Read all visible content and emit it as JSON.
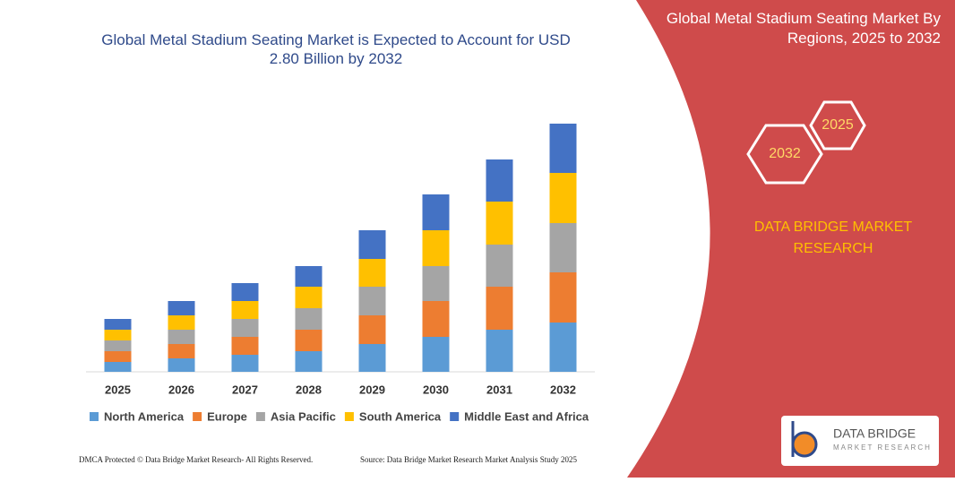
{
  "chart_data": {
    "type": "stacked_bar",
    "title": "Global Metal Stadium Seating Market is Expected to Account for USD 2.80 Billion by 2032",
    "categories": [
      "2025",
      "2026",
      "2027",
      "2028",
      "2029",
      "2030",
      "2031",
      "2032"
    ],
    "series": [
      {
        "name": "North America",
        "color": "#5b9bd5",
        "values": [
          11,
          15,
          19,
          23,
          31,
          39,
          47,
          55
        ]
      },
      {
        "name": "Europe",
        "color": "#ed7d31",
        "values": [
          12,
          16,
          20,
          24,
          32,
          40,
          48,
          56
        ]
      },
      {
        "name": "Asia Pacific",
        "color": "#a5a5a5",
        "values": [
          12,
          16,
          20,
          24,
          32,
          39,
          47,
          55
        ]
      },
      {
        "name": "South America",
        "color": "#ffc000",
        "values": [
          12,
          16,
          20,
          24,
          31,
          40,
          48,
          56
        ]
      },
      {
        "name": "Middle East and Africa",
        "color": "#4472c4",
        "values": [
          12,
          16,
          20,
          23,
          32,
          40,
          47,
          55
        ]
      }
    ],
    "ylim": [
      0,
      300
    ]
  },
  "panel": {
    "title": "Global Metal Stadium Seating Market By Regions, 2025 to 2032",
    "hex_right": "2025",
    "hex_left": "2032",
    "brand": "DATA BRIDGE MARKET RESEARCH"
  },
  "footer": {
    "left": "DMCA Protected © Data Bridge Market Research- All Rights Reserved.",
    "right": "Source: Data Bridge Market Research Market Analysis Study 2025"
  },
  "logo": {
    "name": "DATA BRIDGE",
    "tagline": "MARKET RESEARCH"
  }
}
